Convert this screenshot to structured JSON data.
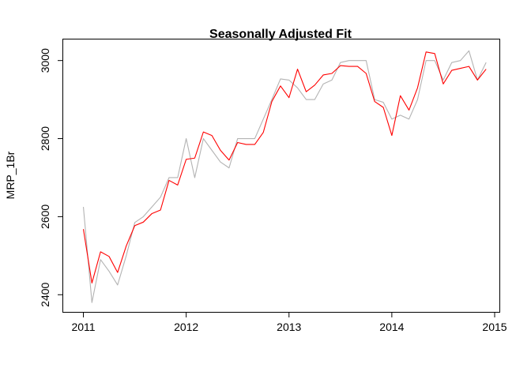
{
  "chart_data": {
    "type": "line",
    "title": "Seasonally Adjusted Fit",
    "xlabel": "",
    "ylabel": "MRP_1Br",
    "xlim": [
      2010.8,
      2015.05
    ],
    "ylim": [
      2355,
      3055
    ],
    "x_ticks": [
      2011,
      2012,
      2013,
      2014,
      2015
    ],
    "x_tick_labels": [
      "2011",
      "2012",
      "2013",
      "2014",
      "2015"
    ],
    "y_ticks": [
      2400,
      2600,
      2800,
      3000
    ],
    "y_tick_labels": [
      "2400",
      "2600",
      "2800",
      "3000"
    ],
    "grid": false,
    "legend": "none",
    "x": [
      2011.0,
      2011.083,
      2011.167,
      2011.25,
      2011.333,
      2011.417,
      2011.5,
      2011.583,
      2011.667,
      2011.75,
      2011.833,
      2011.917,
      2012.0,
      2012.083,
      2012.167,
      2012.25,
      2012.333,
      2012.417,
      2012.5,
      2012.583,
      2012.667,
      2012.75,
      2012.833,
      2012.917,
      2013.0,
      2013.083,
      2013.167,
      2013.25,
      2013.333,
      2013.417,
      2013.5,
      2013.583,
      2013.667,
      2013.75,
      2013.833,
      2013.917,
      2014.0,
      2014.083,
      2014.167,
      2014.25,
      2014.333,
      2014.417,
      2014.5,
      2014.583,
      2014.667,
      2014.75,
      2014.833,
      2014.917
    ],
    "series": [
      {
        "color": "#b3b3b3",
        "values": [
          2625,
          2380,
          2490,
          2460,
          2425,
          2500,
          2585,
          2600,
          2625,
          2650,
          2700,
          2700,
          2800,
          2700,
          2800,
          2770,
          2740,
          2725,
          2800,
          2800,
          2800,
          2850,
          2900,
          2953,
          2950,
          2930,
          2900,
          2900,
          2940,
          2950,
          2995,
          3000,
          3000,
          3000,
          2900,
          2893,
          2850,
          2860,
          2850,
          2900,
          3000,
          3000,
          2950,
          2995,
          3000,
          3025,
          2950,
          2995
        ]
      },
      {
        "color": "#ff0000",
        "values": [
          2568,
          2430,
          2510,
          2498,
          2457,
          2525,
          2577,
          2586,
          2608,
          2617,
          2693,
          2681,
          2747,
          2750,
          2817,
          2808,
          2770,
          2745,
          2790,
          2785,
          2785,
          2816,
          2895,
          2935,
          2905,
          2978,
          2920,
          2937,
          2963,
          2967,
          2987,
          2985,
          2985,
          2967,
          2895,
          2880,
          2808,
          2910,
          2873,
          2930,
          3022,
          3018,
          2940,
          2975,
          2980,
          2985,
          2950,
          2978
        ]
      }
    ]
  }
}
